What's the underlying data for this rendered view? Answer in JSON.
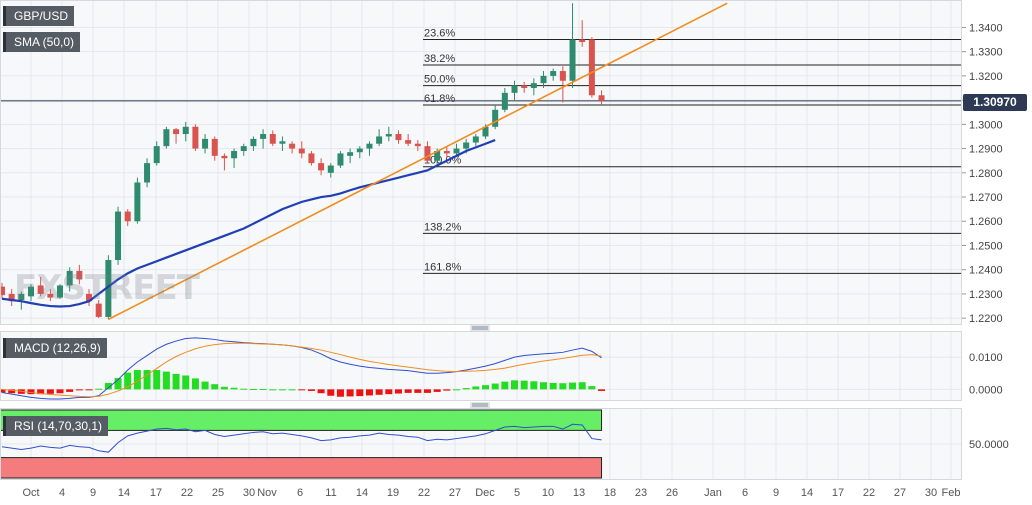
{
  "instrument": "GBP/USD",
  "indicators": {
    "sma_label": "SMA (50,0)",
    "macd_label": "MACD (12,26,9)",
    "rsi_label": "RSI (14,70,30,1)"
  },
  "watermark": "FXSTREET",
  "current_price": "1.30970",
  "colors": {
    "bull": "#2e8b6e",
    "bear": "#d9534f",
    "sma": "#1f3fb5",
    "trendline": "#f28c1e",
    "macd_line": "#2f4fd0",
    "signal_line": "#f28c1e",
    "hist_pos": "#22dd22",
    "hist_neg": "#ee1111",
    "rsi_over": "#66ee66",
    "rsi_under": "#f47c7c"
  },
  "chart_data": {
    "type": "candlestick",
    "price_axis": {
      "range": [
        1.218,
        1.3505
      ],
      "ticks": [
        "1.2200",
        "1.2300",
        "1.2400",
        "1.2500",
        "1.2600",
        "1.2700",
        "1.2800",
        "1.2900",
        "1.3000",
        "1.3100",
        "1.3200",
        "1.3300",
        "1.3400"
      ]
    },
    "x_axis_labels": [
      "Oct",
      "4",
      "9",
      "14",
      "17",
      "22",
      "25",
      "30",
      "Nov",
      "6",
      "11",
      "14",
      "19",
      "22",
      "27",
      "Dec",
      "5",
      "10",
      "13",
      "18",
      "23",
      "26",
      "Jan",
      "6",
      "9",
      "14",
      "17",
      "22",
      "27",
      "30",
      "Feb"
    ],
    "candles": [
      [
        1.233,
        1.2345,
        1.228,
        1.2295
      ],
      [
        1.23,
        1.232,
        1.225,
        1.227
      ],
      [
        1.2275,
        1.231,
        1.2235,
        1.23
      ],
      [
        1.229,
        1.234,
        1.227,
        1.233
      ],
      [
        1.2335,
        1.237,
        1.229,
        1.23
      ],
      [
        1.23,
        1.232,
        1.227,
        1.2285
      ],
      [
        1.2285,
        1.234,
        1.228,
        1.2335
      ],
      [
        1.2335,
        1.241,
        1.231,
        1.2395
      ],
      [
        1.2395,
        1.242,
        1.234,
        1.236
      ],
      [
        1.23,
        1.232,
        1.225,
        1.227
      ],
      [
        1.226,
        1.2275,
        1.22,
        1.2205
      ],
      [
        1.2205,
        1.246,
        1.2195,
        1.244
      ],
      [
        1.244,
        1.266,
        1.242,
        1.264
      ],
      [
        1.264,
        1.265,
        1.258,
        1.26
      ],
      [
        1.26,
        1.278,
        1.259,
        1.276
      ],
      [
        1.276,
        1.286,
        1.274,
        1.284
      ],
      [
        1.284,
        1.293,
        1.283,
        1.291
      ],
      [
        1.291,
        1.299,
        1.29,
        1.298
      ],
      [
        1.298,
        1.2985,
        1.292,
        1.296
      ],
      [
        1.296,
        1.301,
        1.293,
        1.299
      ],
      [
        1.299,
        1.3,
        1.289,
        1.29
      ],
      [
        1.29,
        1.296,
        1.288,
        1.294
      ],
      [
        1.294,
        1.295,
        1.285,
        1.287
      ],
      [
        1.287,
        1.288,
        1.281,
        1.286
      ],
      [
        1.286,
        1.29,
        1.282,
        1.289
      ],
      [
        1.289,
        1.292,
        1.287,
        1.291
      ],
      [
        1.291,
        1.295,
        1.289,
        1.294
      ],
      [
        1.294,
        1.298,
        1.29,
        1.296
      ],
      [
        1.296,
        1.2975,
        1.291,
        1.292
      ],
      [
        1.292,
        1.295,
        1.289,
        1.293
      ],
      [
        1.292,
        1.293,
        1.288,
        1.29
      ],
      [
        1.29,
        1.293,
        1.286,
        1.288
      ],
      [
        1.288,
        1.289,
        1.283,
        1.284
      ],
      [
        1.284,
        1.286,
        1.279,
        1.281
      ],
      [
        1.28,
        1.284,
        1.278,
        1.283
      ],
      [
        1.283,
        1.289,
        1.282,
        1.288
      ],
      [
        1.287,
        1.29,
        1.284,
        1.2885
      ],
      [
        1.2885,
        1.291,
        1.286,
        1.29
      ],
      [
        1.29,
        1.293,
        1.287,
        1.292
      ],
      [
        1.292,
        1.298,
        1.291,
        1.295
      ],
      [
        1.295,
        1.299,
        1.293,
        1.296
      ],
      [
        1.296,
        1.2975,
        1.292,
        1.2935
      ],
      [
        1.2935,
        1.296,
        1.291,
        1.292
      ],
      [
        1.292,
        1.2935,
        1.289,
        1.291
      ],
      [
        1.291,
        1.293,
        1.284,
        1.285
      ],
      [
        1.285,
        1.29,
        1.283,
        1.289
      ],
      [
        1.289,
        1.291,
        1.286,
        1.288
      ],
      [
        1.288,
        1.292,
        1.287,
        1.29
      ],
      [
        1.29,
        1.294,
        1.288,
        1.2925
      ],
      [
        1.2925,
        1.296,
        1.291,
        1.295
      ],
      [
        1.295,
        1.3,
        1.294,
        1.299
      ],
      [
        1.299,
        1.308,
        1.298,
        1.306
      ],
      [
        1.306,
        1.315,
        1.305,
        1.313
      ],
      [
        1.313,
        1.318,
        1.31,
        1.316
      ],
      [
        1.316,
        1.3175,
        1.313,
        1.315
      ],
      [
        1.315,
        1.319,
        1.312,
        1.317
      ],
      [
        1.317,
        1.322,
        1.315,
        1.32
      ],
      [
        1.32,
        1.323,
        1.318,
        1.322
      ],
      [
        1.322,
        1.324,
        1.309,
        1.318
      ],
      [
        1.318,
        1.35,
        1.315,
        1.335
      ],
      [
        1.335,
        1.343,
        1.332,
        1.334
      ],
      [
        1.335,
        1.336,
        1.311,
        1.312
      ],
      [
        1.312,
        1.314,
        1.308,
        1.3097
      ]
    ],
    "sma": [
      1.228,
      1.2275,
      1.227,
      1.2262,
      1.2255,
      1.225,
      1.2248,
      1.225,
      1.2258,
      1.227,
      1.23,
      1.233,
      1.236,
      1.2385,
      1.2405,
      1.242,
      1.2435,
      1.245,
      1.2465,
      1.248,
      1.2495,
      1.251,
      1.2525,
      1.254,
      1.2555,
      1.257,
      1.259,
      1.261,
      1.263,
      1.265,
      1.2665,
      1.268,
      1.269,
      1.27,
      1.2705,
      1.2715,
      1.2728,
      1.274,
      1.275,
      1.276,
      1.277,
      1.278,
      1.279,
      1.28,
      1.281,
      1.283,
      1.285,
      1.287,
      1.289,
      1.2905,
      1.292,
      1.2935
    ],
    "trendline": {
      "from": [
        1.2195,
        11
      ],
      "to": [
        1.35,
        75
      ]
    },
    "fibonacci": [
      {
        "label": "23.6%",
        "price": 1.335
      },
      {
        "label": "38.2%",
        "price": 1.3245
      },
      {
        "label": "50.0%",
        "price": 1.316
      },
      {
        "label": "61.8%",
        "price": 1.308
      },
      {
        "label": "100.0%",
        "price": 1.2825
      },
      {
        "label": "138.2%",
        "price": 1.255
      },
      {
        "label": "161.8%",
        "price": 1.2385
      }
    ],
    "macd_axis": {
      "range": [
        -0.003,
        0.0175
      ],
      "ticks": [
        "0.0100",
        "0.0000"
      ]
    },
    "macd": [
      -0.001,
      -0.0015,
      -0.002,
      -0.0025,
      -0.0028,
      -0.003,
      -0.003,
      -0.0028,
      -0.0025,
      -0.0025,
      -0.002,
      0.0005,
      0.003,
      0.006,
      0.0085,
      0.0105,
      0.0125,
      0.014,
      0.015,
      0.0158,
      0.016,
      0.0158,
      0.0155,
      0.015,
      0.0148,
      0.0145,
      0.0143,
      0.0142,
      0.014,
      0.0138,
      0.0135,
      0.013,
      0.0122,
      0.011,
      0.0095,
      0.0085,
      0.0078,
      0.0072,
      0.0068,
      0.0065,
      0.0062,
      0.006,
      0.0058,
      0.0054,
      0.005,
      0.005,
      0.0052,
      0.0055,
      0.006,
      0.0066,
      0.0072,
      0.008,
      0.009,
      0.01,
      0.0105,
      0.0108,
      0.011,
      0.0112,
      0.0115,
      0.0122,
      0.0128,
      0.0118,
      0.0098
    ],
    "signal": [
      0.0,
      -0.0003,
      -0.0006,
      -0.001,
      -0.0013,
      -0.0016,
      -0.0018,
      -0.002,
      -0.0022,
      -0.0023,
      -0.0022,
      -0.0015,
      -0.0005,
      0.0008,
      0.0025,
      0.0045,
      0.0065,
      0.0085,
      0.0102,
      0.0115,
      0.0126,
      0.0134,
      0.0139,
      0.0142,
      0.0143,
      0.0143,
      0.0142,
      0.0141,
      0.014,
      0.0138,
      0.0135,
      0.0131,
      0.0127,
      0.0122,
      0.0115,
      0.0108,
      0.01,
      0.0093,
      0.0087,
      0.0082,
      0.0077,
      0.0073,
      0.0069,
      0.0065,
      0.0061,
      0.0058,
      0.0056,
      0.0055,
      0.0056,
      0.0057,
      0.0059,
      0.0062,
      0.0066,
      0.0072,
      0.0078,
      0.0083,
      0.0088,
      0.0092,
      0.0096,
      0.0101,
      0.0106,
      0.0108,
      0.0103
    ],
    "rsi_axis": {
      "range": [
        0,
        100
      ],
      "ticks": [
        "50.0000"
      ]
    },
    "rsi_levels": [
      70,
      30
    ],
    "rsi": [
      46,
      44,
      42,
      44,
      47,
      45,
      44,
      48,
      46,
      45,
      40,
      38,
      52,
      62,
      66,
      69,
      72,
      73,
      71,
      72,
      68,
      70,
      64,
      61,
      63,
      65,
      67,
      68,
      65,
      66,
      64,
      62,
      59,
      55,
      56,
      59,
      60,
      62,
      63,
      66,
      64,
      63,
      61,
      60,
      55,
      57,
      56,
      58,
      60,
      62,
      65,
      70,
      75,
      76,
      74,
      75,
      76,
      76,
      72,
      79,
      78,
      58,
      56
    ]
  }
}
